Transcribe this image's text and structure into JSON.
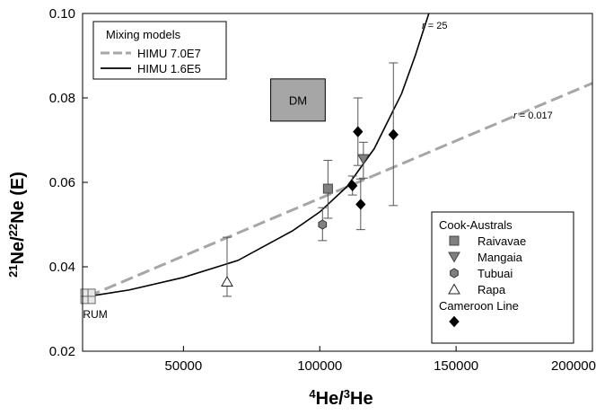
{
  "chart_data": {
    "type": "scatter",
    "title": "",
    "xlabel": {
      "sup": "4",
      "a": "He/",
      "sup2": "3",
      "b": "He"
    },
    "ylabel": {
      "sup": "21",
      "a": "Ne/",
      "sup2": "22",
      "b": "Ne (E)"
    },
    "xlim": [
      13000,
      200000
    ],
    "ylim": [
      0.02,
      0.1
    ],
    "xticks": [
      50000,
      100000,
      150000,
      200000
    ],
    "xtick_labels": [
      "50000",
      "100000",
      "150000",
      "200000"
    ],
    "yticks": [
      0.02,
      0.04,
      0.06,
      0.08,
      0.1
    ],
    "ytick_labels": [
      "0.02",
      "0.04",
      "0.06",
      "0.08",
      "0.10"
    ],
    "grid": false,
    "mixing_legend": {
      "title": "Mixing models",
      "entries": [
        {
          "label": "HIMU 7.0E7",
          "style": "dashed",
          "color": "#a6a6a6"
        },
        {
          "label": "HIMU 1.6E5",
          "style": "solid",
          "color": "#000000"
        }
      ],
      "placement": "top-left"
    },
    "curves": [
      {
        "name": "HIMU 7.0E7",
        "r_label": "r = 0.017",
        "r_italic": "r",
        "r_rest": " = 0.017",
        "style": "dashed",
        "color": "#a6a6a6",
        "x": [
          15000,
          200000
        ],
        "y": [
          0.033,
          0.0835
        ]
      },
      {
        "name": "HIMU 1.6E5",
        "r_label": "r = 25",
        "r_italic": "r",
        "r_rest": " = 25",
        "style": "solid",
        "color": "#000000",
        "x": [
          15000,
          30000,
          50000,
          70000,
          90000,
          100000,
          110000,
          120000,
          130000,
          135000,
          138000,
          140000
        ],
        "y": [
          0.033,
          0.0345,
          0.0375,
          0.0415,
          0.0485,
          0.053,
          0.059,
          0.068,
          0.081,
          0.09,
          0.096,
          0.1
        ]
      }
    ],
    "endmembers": [
      {
        "label": "RUM",
        "x": 15000,
        "y": 0.033,
        "marker": "square-cross"
      },
      {
        "label": "DM",
        "x1": 82000,
        "x2": 102000,
        "y1": 0.0745,
        "y2": 0.0845,
        "marker": "box"
      }
    ],
    "sample_legend": {
      "groups": [
        {
          "title": "Cook-Australs",
          "entries": [
            {
              "label": "Raivavae",
              "marker": "square",
              "color": "#808080"
            },
            {
              "label": "Mangaia",
              "marker": "triangle-down",
              "color": "#808080"
            },
            {
              "label": "Tubuai",
              "marker": "hexagon",
              "color": "#808080"
            },
            {
              "label": "Rapa",
              "marker": "triangle-up-open",
              "color": "#ffffff"
            }
          ]
        },
        {
          "title": "Cameroon Line",
          "entries": [
            {
              "label": "",
              "marker": "diamond",
              "color": "#000000"
            }
          ]
        }
      ],
      "placement": "bottom-right"
    },
    "series": [
      {
        "name": "Raivavae",
        "marker": "square",
        "color": "#808080",
        "points": [
          {
            "x": 103000,
            "y": 0.0585,
            "ylow": 0.0515,
            "yhigh": 0.0652
          }
        ]
      },
      {
        "name": "Mangaia",
        "marker": "triangle-down",
        "color": "#808080",
        "points": [
          {
            "x": 116000,
            "y": 0.0655,
            "ylow": 0.061,
            "yhigh": 0.0695
          }
        ]
      },
      {
        "name": "Tubuai",
        "marker": "hexagon",
        "color": "#808080",
        "points": [
          {
            "x": 101000,
            "y": 0.05,
            "ylow": 0.0462,
            "yhigh": 0.054
          }
        ]
      },
      {
        "name": "Rapa",
        "marker": "triangle-up-open",
        "color": "#ffffff",
        "points": [
          {
            "x": 66000,
            "y": 0.0365,
            "ylow": 0.033,
            "yhigh": 0.047
          }
        ]
      },
      {
        "name": "Cameroon Line",
        "marker": "diamond",
        "color": "#000000",
        "points": [
          {
            "x": 114000,
            "y": 0.072,
            "ylow": 0.064,
            "yhigh": 0.08
          },
          {
            "x": 112000,
            "y": 0.0592,
            "ylow": 0.057,
            "yhigh": 0.0615
          },
          {
            "x": 115000,
            "y": 0.0548,
            "ylow": 0.0488,
            "yhigh": 0.0608
          },
          {
            "x": 127000,
            "y": 0.0713,
            "ylow": 0.0545,
            "yhigh": 0.0883
          }
        ]
      }
    ]
  }
}
